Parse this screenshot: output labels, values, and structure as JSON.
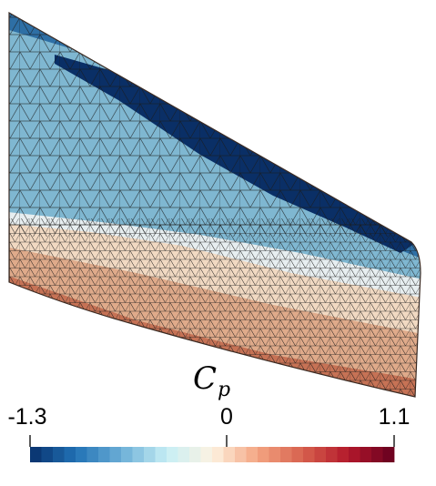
{
  "figure": {
    "colorbar": {
      "title_symbol": "C",
      "title_subscript": "p",
      "min_label": "-1.3",
      "mid_label": "0",
      "max_label": "1.1",
      "range": [
        -1.3,
        1.1
      ],
      "num_bins": 32,
      "colormap_stops": [
        "#08306b",
        "#2171b5",
        "#6baed6",
        "#c6eef5",
        "#fdf3e1",
        "#f4a582",
        "#d6604d",
        "#b2182b",
        "#67001f"
      ]
    },
    "surface_colors": {
      "suction_deep": "#0a2f66",
      "suction_mid": "#2e6fa5",
      "suction_light": "#7fb7d1",
      "neutral": "#e7eef0",
      "pressure_light": "#f1d9c2",
      "pressure_mid": "#dfaa8a",
      "pressure_edge": "#c67255",
      "mesh_line": "#1a1a1a"
    }
  }
}
